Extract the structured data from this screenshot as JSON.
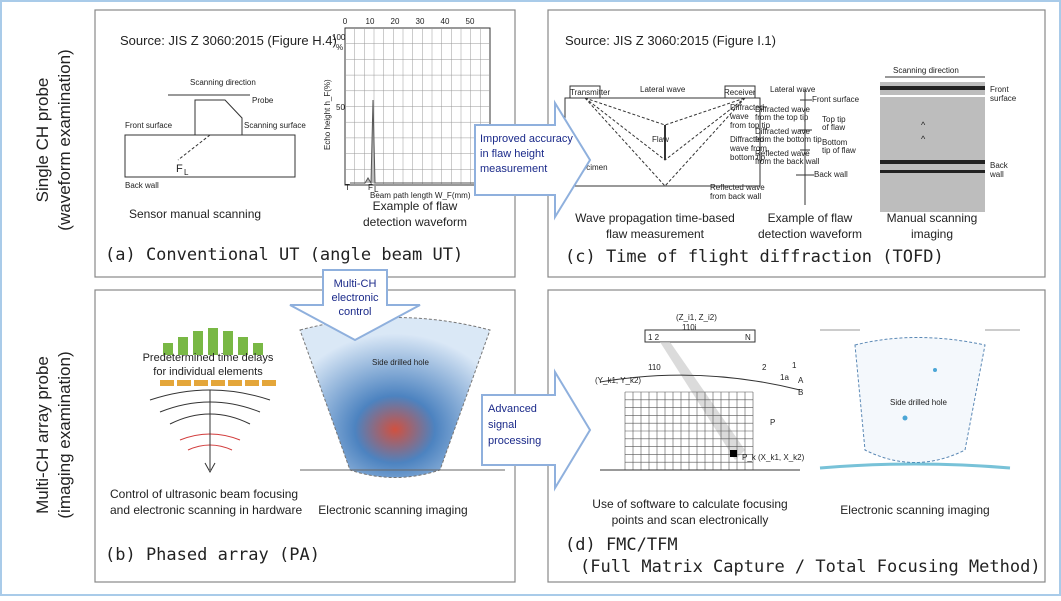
{
  "rows": [
    {
      "label": "Single CH probe",
      "sublabel": "(waveform examination)"
    },
    {
      "label": "Multi-CH array probe",
      "sublabel": "(imaging examination)"
    }
  ],
  "arrows": {
    "right_top": [
      "Improved accuracy",
      "in flaw height",
      "measurement"
    ],
    "down": [
      "Multi-CH",
      "electronic",
      "control"
    ],
    "right_bottom": [
      "Advanced",
      "signal",
      "processing"
    ]
  },
  "panel_a": {
    "source": "Source: JIS Z 3060:2015 (Figure H.4)",
    "title": "(a) Conventional UT (angle beam UT)",
    "figure": {
      "scan_dir": "Scanning direction",
      "probe": "Probe",
      "front": "Front surface",
      "scan_surface": "Scanning surface",
      "back": "Back wall",
      "fl": "F",
      "fl_sub": "L"
    },
    "chart": {
      "xticks": [
        "0",
        "10",
        "20",
        "30",
        "40",
        "50"
      ],
      "yticks": [
        "100",
        "50"
      ],
      "yunit": "%",
      "ylabel": "Echo height h_F(%)",
      "xlabel": "Beam path length W_F(mm)",
      "t": "T",
      "f": "F",
      "f_sub": "L"
    },
    "captions": [
      [
        "Sensor manual scanning"
      ],
      [
        "Example of flaw",
        "detection waveform"
      ]
    ]
  },
  "panel_c": {
    "source": "Source: JIS Z 3060:2015 (Figure I.1)",
    "title": "(c) Time of flight diffraction (TOFD)",
    "figure": {
      "transmitter": "Transmitter",
      "lateral": "Lateral wave",
      "receiver": "Receiver",
      "flaw": "Flaw",
      "specimen": "Specimen",
      "top": [
        "Diffracted",
        "wave",
        "from top tip"
      ],
      "bottom": [
        "Diffracted",
        "wave from",
        "bottom tip"
      ],
      "reflected": [
        "Reflected wave",
        "from back wall"
      ]
    },
    "waveform": {
      "lateral": "Lateral wave",
      "front": "Front surface",
      "d_top": [
        "Diffracted wave",
        "from the top tip"
      ],
      "top_tip": [
        "Top tip",
        "of flaw"
      ],
      "d_bottom": [
        "Diffracted wave",
        "from the bottom tip"
      ],
      "bottom_tip": [
        "Bottom",
        "tip of flaw"
      ],
      "reflected": [
        "Reflected wave",
        "from the back wall"
      ],
      "back": "Back wall"
    },
    "image": {
      "scan_dir": "Scanning direction",
      "front": [
        "Front",
        "surface"
      ],
      "back": [
        "Back",
        "wall"
      ]
    },
    "captions": [
      [
        "Wave propagation time-based",
        "flaw measurement"
      ],
      [
        "Example of flaw",
        "detection waveform"
      ],
      [
        "Manual scanning",
        "imaging"
      ]
    ]
  },
  "panel_b": {
    "title": "(b) Phased array (PA)",
    "delays": [
      "Predetermined time delays",
      "for individual elements"
    ],
    "hole": "Side drilled hole",
    "captions": [
      [
        "Control of ultrasonic beam focusing",
        "and electronic scanning in hardware"
      ],
      [
        "Electronic scanning imaging"
      ]
    ]
  },
  "panel_d": {
    "title": "(d) FMC/TFM",
    "subtitle": "(Full Matrix Capture / Total Focusing Method)",
    "figure": {
      "z": "(Z_i1, Z_i2)",
      "n110i": "110i",
      "one_two": "1 2",
      "n": "N",
      "n110": "110",
      "two": "2",
      "one": "1",
      "one_a": "1a",
      "a": "A",
      "b": "B",
      "y": "(Y_k1, Y_k2)",
      "p": "P",
      "pk": "P_k (X_k1, X_k2)"
    },
    "hole": "Side drilled hole",
    "captions": [
      [
        "Use of software to calculate focusing",
        "points and scan electronically"
      ],
      [
        "Electronic scanning imaging"
      ]
    ]
  }
}
